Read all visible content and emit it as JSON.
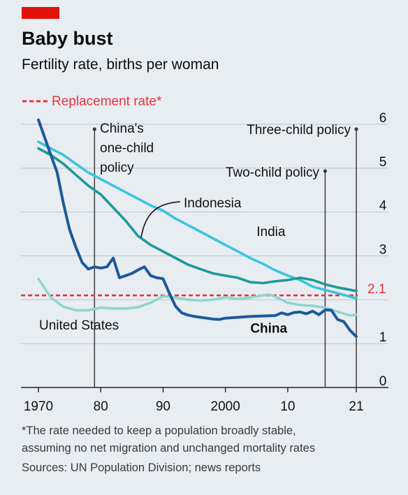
{
  "header": {
    "title": "Baby bust",
    "subtitle": "Fertility rate, births per woman"
  },
  "legend": {
    "replacement_label": "Replacement rate*"
  },
  "annotations": {
    "one_child": [
      "China's",
      "one-child",
      "policy"
    ],
    "two_child": "Two-child policy",
    "three_child": "Three-child policy",
    "replacement_value": "2.1"
  },
  "footer": {
    "note_line1": "*The rate needed to keep a population broadly stable,",
    "note_line2": "assuming no net migration and unchanged mortality rates",
    "sources": "Sources: UN Population Division; news reports"
  },
  "colors": {
    "china": "#1d5a99",
    "india": "#3cc4de",
    "indonesia": "#1e9a9a",
    "united_states": "#8fd6cf",
    "replacement": "#e3343d",
    "brand_bar": "#e3120b"
  },
  "chart_data": {
    "type": "line",
    "xlim": [
      1970,
      2021
    ],
    "ylim": [
      0,
      6
    ],
    "x_ticks": [
      {
        "value": 1970,
        "label": "1970"
      },
      {
        "value": 1980,
        "label": "80"
      },
      {
        "value": 1990,
        "label": "90"
      },
      {
        "value": 2000,
        "label": "2000"
      },
      {
        "value": 2010,
        "label": "10"
      },
      {
        "value": 2021,
        "label": "21"
      }
    ],
    "y_ticks": [
      {
        "value": 0,
        "label": "0"
      },
      {
        "value": 1,
        "label": "1"
      },
      {
        "value": 3,
        "label": "3"
      },
      {
        "value": 4,
        "label": "4"
      },
      {
        "value": 5,
        "label": "5"
      },
      {
        "value": 6,
        "label": "6"
      }
    ],
    "reference_line": {
      "value": 2.1,
      "label": "Replacement rate*"
    },
    "policy_markers": [
      {
        "year": 1979,
        "label": "China's one-child policy"
      },
      {
        "year": 2016,
        "label": "Two-child policy"
      },
      {
        "year": 2021,
        "label": "Three-child policy"
      }
    ],
    "series": [
      {
        "name": "United States",
        "key": "united_states",
        "points": [
          [
            1970,
            2.48
          ],
          [
            1972,
            2.05
          ],
          [
            1974,
            1.84
          ],
          [
            1976,
            1.76
          ],
          [
            1978,
            1.76
          ],
          [
            1980,
            1.82
          ],
          [
            1982,
            1.8
          ],
          [
            1984,
            1.8
          ],
          [
            1986,
            1.83
          ],
          [
            1988,
            1.93
          ],
          [
            1990,
            2.08
          ],
          [
            1992,
            2.05
          ],
          [
            1994,
            2.0
          ],
          [
            1996,
            1.98
          ],
          [
            1998,
            2.0
          ],
          [
            2000,
            2.06
          ],
          [
            2002,
            2.02
          ],
          [
            2004,
            2.05
          ],
          [
            2006,
            2.1
          ],
          [
            2007,
            2.12
          ],
          [
            2008,
            2.07
          ],
          [
            2010,
            1.93
          ],
          [
            2012,
            1.88
          ],
          [
            2014,
            1.86
          ],
          [
            2016,
            1.82
          ],
          [
            2018,
            1.73
          ],
          [
            2020,
            1.64
          ],
          [
            2021,
            1.66
          ]
        ]
      },
      {
        "name": "India",
        "key": "india",
        "points": [
          [
            1970,
            5.6
          ],
          [
            1972,
            5.45
          ],
          [
            1974,
            5.3
          ],
          [
            1976,
            5.1
          ],
          [
            1978,
            4.9
          ],
          [
            1980,
            4.75
          ],
          [
            1982,
            4.6
          ],
          [
            1984,
            4.45
          ],
          [
            1986,
            4.3
          ],
          [
            1988,
            4.15
          ],
          [
            1990,
            4.03
          ],
          [
            1992,
            3.85
          ],
          [
            1994,
            3.7
          ],
          [
            1996,
            3.55
          ],
          [
            1998,
            3.4
          ],
          [
            2000,
            3.25
          ],
          [
            2002,
            3.1
          ],
          [
            2004,
            2.95
          ],
          [
            2006,
            2.82
          ],
          [
            2008,
            2.67
          ],
          [
            2010,
            2.55
          ],
          [
            2012,
            2.45
          ],
          [
            2014,
            2.3
          ],
          [
            2016,
            2.22
          ],
          [
            2018,
            2.15
          ],
          [
            2021,
            2.03
          ]
        ]
      },
      {
        "name": "Indonesia",
        "key": "indonesia",
        "points": [
          [
            1970,
            5.45
          ],
          [
            1972,
            5.3
          ],
          [
            1974,
            5.1
          ],
          [
            1976,
            4.85
          ],
          [
            1978,
            4.6
          ],
          [
            1980,
            4.4
          ],
          [
            1982,
            4.1
          ],
          [
            1984,
            3.8
          ],
          [
            1986,
            3.45
          ],
          [
            1988,
            3.25
          ],
          [
            1990,
            3.1
          ],
          [
            1992,
            2.95
          ],
          [
            1994,
            2.8
          ],
          [
            1996,
            2.7
          ],
          [
            1998,
            2.6
          ],
          [
            2000,
            2.55
          ],
          [
            2002,
            2.5
          ],
          [
            2004,
            2.4
          ],
          [
            2006,
            2.38
          ],
          [
            2008,
            2.42
          ],
          [
            2010,
            2.45
          ],
          [
            2012,
            2.5
          ],
          [
            2014,
            2.45
          ],
          [
            2016,
            2.35
          ],
          [
            2018,
            2.28
          ],
          [
            2021,
            2.2
          ]
        ]
      },
      {
        "name": "China",
        "key": "china",
        "points": [
          [
            1970,
            6.1
          ],
          [
            1971,
            5.7
          ],
          [
            1972,
            5.3
          ],
          [
            1973,
            4.9
          ],
          [
            1974,
            4.2
          ],
          [
            1975,
            3.6
          ],
          [
            1976,
            3.2
          ],
          [
            1977,
            2.85
          ],
          [
            1978,
            2.7
          ],
          [
            1979,
            2.75
          ],
          [
            1980,
            2.72
          ],
          [
            1981,
            2.75
          ],
          [
            1982,
            2.95
          ],
          [
            1983,
            2.5
          ],
          [
            1984,
            2.55
          ],
          [
            1985,
            2.6
          ],
          [
            1986,
            2.68
          ],
          [
            1987,
            2.75
          ],
          [
            1988,
            2.55
          ],
          [
            1989,
            2.5
          ],
          [
            1990,
            2.48
          ],
          [
            1991,
            2.15
          ],
          [
            1992,
            1.85
          ],
          [
            1993,
            1.7
          ],
          [
            1994,
            1.65
          ],
          [
            1995,
            1.62
          ],
          [
            1996,
            1.6
          ],
          [
            1997,
            1.58
          ],
          [
            1998,
            1.56
          ],
          [
            1999,
            1.55
          ],
          [
            2000,
            1.58
          ],
          [
            2002,
            1.6
          ],
          [
            2004,
            1.62
          ],
          [
            2006,
            1.63
          ],
          [
            2008,
            1.64
          ],
          [
            2009,
            1.7
          ],
          [
            2010,
            1.66
          ],
          [
            2011,
            1.71
          ],
          [
            2012,
            1.72
          ],
          [
            2013,
            1.68
          ],
          [
            2014,
            1.74
          ],
          [
            2015,
            1.66
          ],
          [
            2016,
            1.77
          ],
          [
            2017,
            1.76
          ],
          [
            2018,
            1.55
          ],
          [
            2019,
            1.5
          ],
          [
            2020,
            1.3
          ],
          [
            2021,
            1.16
          ]
        ]
      }
    ],
    "series_labels": [
      {
        "key": "india",
        "text": "India",
        "x": 2005,
        "y": 3.45
      },
      {
        "key": "indonesia",
        "text": "Indonesia",
        "x": 1993,
        "y": 4.1
      },
      {
        "key": "united_states",
        "text": "United States",
        "x": 1970,
        "y": 1.55
      },
      {
        "key": "china",
        "text": "China",
        "x": 2004,
        "y": 1.25,
        "bold": true
      }
    ]
  }
}
